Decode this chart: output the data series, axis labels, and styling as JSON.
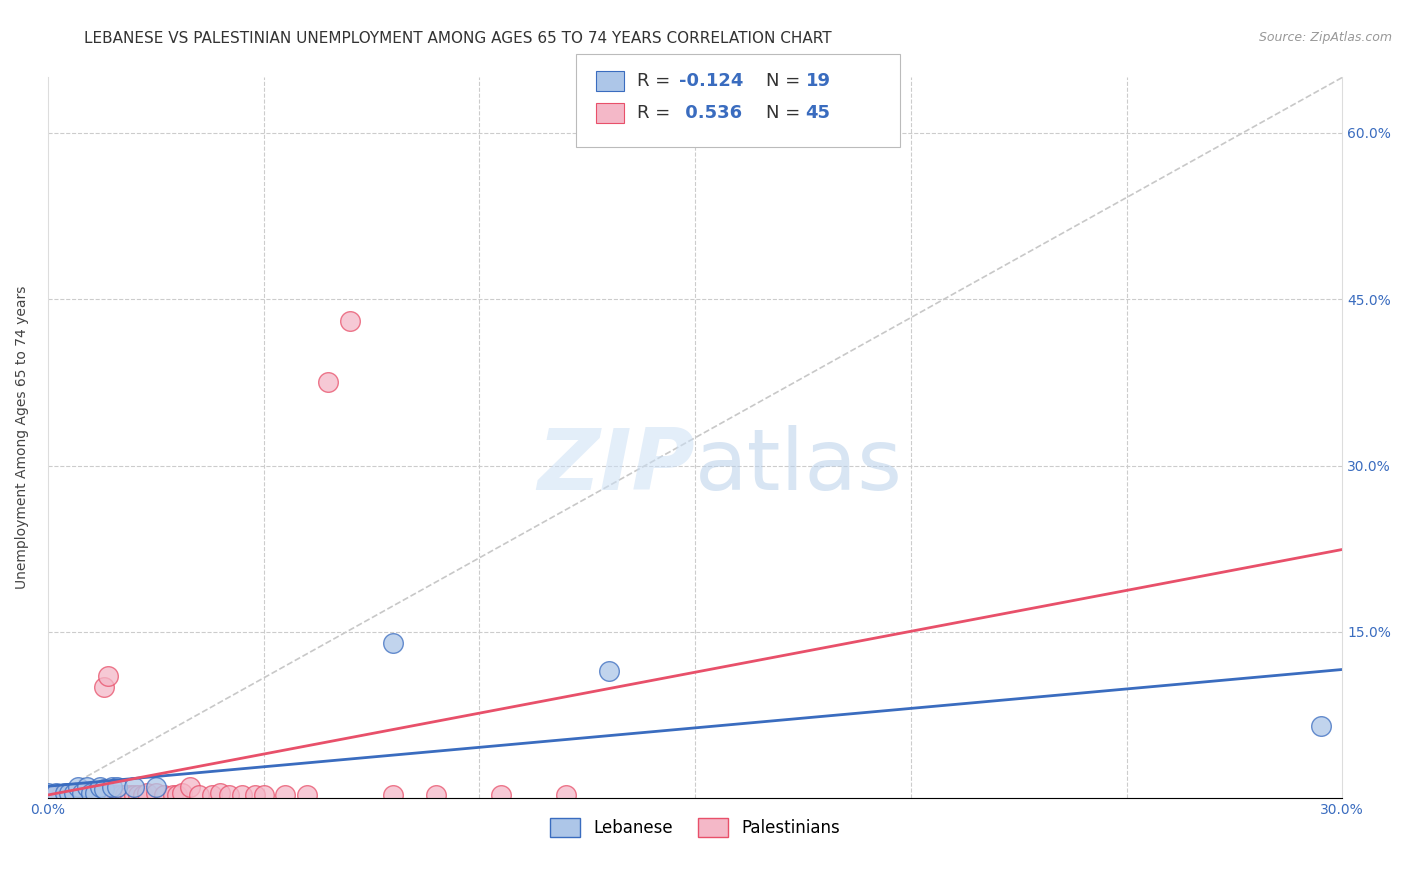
{
  "title": "LEBANESE VS PALESTINIAN UNEMPLOYMENT AMONG AGES 65 TO 74 YEARS CORRELATION CHART",
  "source": "Source: ZipAtlas.com",
  "ylabel": "Unemployment Among Ages 65 to 74 years",
  "xlim": [
    0.0,
    0.3
  ],
  "ylim": [
    0.0,
    0.65
  ],
  "lebanese_color": "#adc6e8",
  "palestinian_color": "#f4b8c8",
  "lebanese_line_color": "#3a6cbf",
  "palestinian_line_color": "#e8506a",
  "diagonal_color": "#c8c8c8",
  "lebanese_x": [
    0.0,
    0.002,
    0.004,
    0.005,
    0.006,
    0.007,
    0.008,
    0.009,
    0.01,
    0.011,
    0.012,
    0.013,
    0.015,
    0.016,
    0.02,
    0.025,
    0.08,
    0.13,
    0.295
  ],
  "lebanese_y": [
    0.005,
    0.005,
    0.005,
    0.005,
    0.005,
    0.01,
    0.005,
    0.01,
    0.005,
    0.005,
    0.01,
    0.008,
    0.01,
    0.01,
    0.01,
    0.01,
    0.14,
    0.115,
    0.065
  ],
  "palestinian_x": [
    0.0,
    0.002,
    0.003,
    0.004,
    0.005,
    0.005,
    0.006,
    0.007,
    0.008,
    0.009,
    0.01,
    0.011,
    0.012,
    0.013,
    0.014,
    0.015,
    0.016,
    0.017,
    0.018,
    0.019,
    0.02,
    0.021,
    0.022,
    0.023,
    0.025,
    0.027,
    0.029,
    0.03,
    0.031,
    0.033,
    0.035,
    0.038,
    0.04,
    0.042,
    0.045,
    0.048,
    0.05,
    0.055,
    0.06,
    0.065,
    0.07,
    0.08,
    0.09,
    0.105,
    0.12
  ],
  "palestinian_y": [
    0.003,
    0.003,
    0.003,
    0.003,
    0.003,
    0.005,
    0.003,
    0.003,
    0.003,
    0.005,
    0.003,
    0.003,
    0.005,
    0.1,
    0.11,
    0.003,
    0.003,
    0.003,
    0.003,
    0.003,
    0.003,
    0.003,
    0.003,
    0.005,
    0.005,
    0.003,
    0.003,
    0.003,
    0.005,
    0.01,
    0.003,
    0.003,
    0.005,
    0.003,
    0.003,
    0.003,
    0.003,
    0.003,
    0.003,
    0.375,
    0.43,
    0.003,
    0.003,
    0.003,
    0.003
  ],
  "leb_R": "-0.124",
  "leb_N": "19",
  "pal_R": "0.536",
  "pal_N": "45",
  "title_fontsize": 11,
  "axis_label_fontsize": 10,
  "tick_fontsize": 10,
  "source_fontsize": 9
}
